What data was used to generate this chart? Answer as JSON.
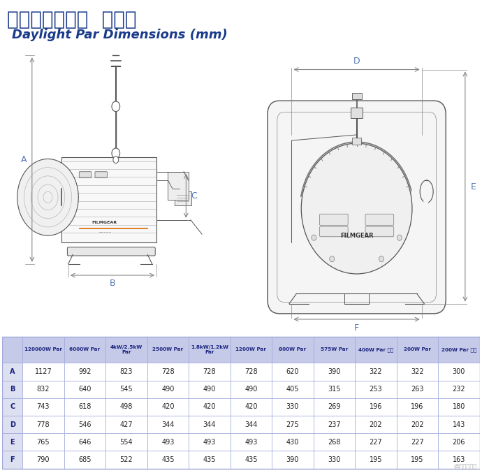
{
  "title_chinese": "高色温直射镝灯  规格表",
  "title_english": "Daylight Par Dimensions (mm)",
  "title_color": "#1a3a8a",
  "title_chinese_size": 20,
  "title_english_size": 13,
  "table_headers": [
    "",
    "120000W Par",
    "6000W Par",
    "4kW/2.5kW\nPar",
    "2500W Par",
    "1.8kW/1.2kW\nPar",
    "1200W Par",
    "800W Par",
    "575W Par",
    "400W Par 小型",
    "200W Par",
    "200W Par 小型"
  ],
  "table_rows": [
    [
      "A",
      "1127",
      "992",
      "823",
      "728",
      "728",
      "728",
      "620",
      "390",
      "322",
      "322",
      "300"
    ],
    [
      "B",
      "832",
      "640",
      "545",
      "490",
      "490",
      "490",
      "405",
      "315",
      "253",
      "263",
      "232"
    ],
    [
      "C",
      "743",
      "618",
      "498",
      "420",
      "420",
      "420",
      "330",
      "269",
      "196",
      "196",
      "180"
    ],
    [
      "D",
      "778",
      "546",
      "427",
      "344",
      "344",
      "344",
      "275",
      "237",
      "202",
      "202",
      "143"
    ],
    [
      "E",
      "765",
      "646",
      "554",
      "493",
      "493",
      "493",
      "430",
      "268",
      "227",
      "227",
      "206"
    ],
    [
      "F",
      "790",
      "685",
      "522",
      "435",
      "435",
      "435",
      "390",
      "330",
      "195",
      "195",
      "163"
    ]
  ],
  "header_bg": "#c5cae9",
  "row_bg_even": "#ffffff",
  "row_bg_odd": "#eef0f8",
  "table_border_color": "#9fa8da",
  "row_label_bg": "#dde0f0",
  "text_color": "#1a237e",
  "data_text_color": "#222222",
  "watermark": "@影视工业网",
  "background_color": "#ffffff",
  "dim_line_color": "#888888",
  "label_color": "#5577bb",
  "drawing_color": "#555555",
  "drawing_light": "#cccccc"
}
